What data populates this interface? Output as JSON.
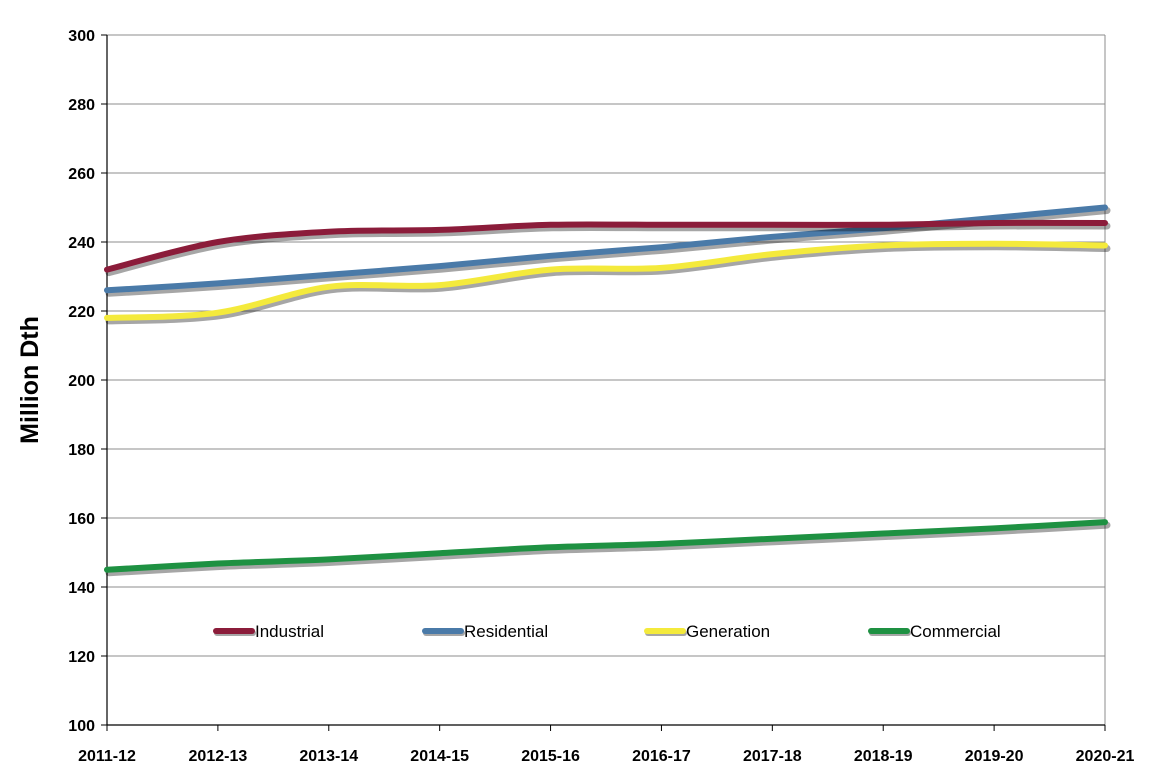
{
  "chart_data": {
    "type": "line",
    "title": "",
    "xlabel": "",
    "ylabel": "Million Dth",
    "ylim": [
      100,
      300
    ],
    "yticks": [
      100,
      120,
      140,
      160,
      180,
      200,
      220,
      240,
      260,
      280,
      300
    ],
    "grid": "horizontal",
    "legend_position": "bottom-inside",
    "categories": [
      "2011-12",
      "2012-13",
      "2013-14",
      "2014-15",
      "2015-16",
      "2016-17",
      "2017-18",
      "2018-19",
      "2019-20",
      "2020-21"
    ],
    "series": [
      {
        "name": "Industrial",
        "color": "#8b1c3a",
        "values": [
          232,
          240,
          243,
          243.5,
          245,
          245,
          245,
          245,
          245.5,
          245.5
        ]
      },
      {
        "name": "Residential",
        "color": "#4a7aa8",
        "values": [
          226,
          228,
          230.5,
          233,
          236,
          238.5,
          241.5,
          244,
          247,
          250
        ]
      },
      {
        "name": "Generation",
        "color": "#f4ea3c",
        "values": [
          218,
          219.5,
          227,
          227.5,
          232,
          232.5,
          236.5,
          239,
          239.5,
          239
        ]
      },
      {
        "name": "Commercial",
        "color": "#1e9142",
        "values": [
          145,
          146.8,
          148,
          149.8,
          151.5,
          152.5,
          154,
          155.5,
          157,
          158.8
        ]
      }
    ]
  }
}
